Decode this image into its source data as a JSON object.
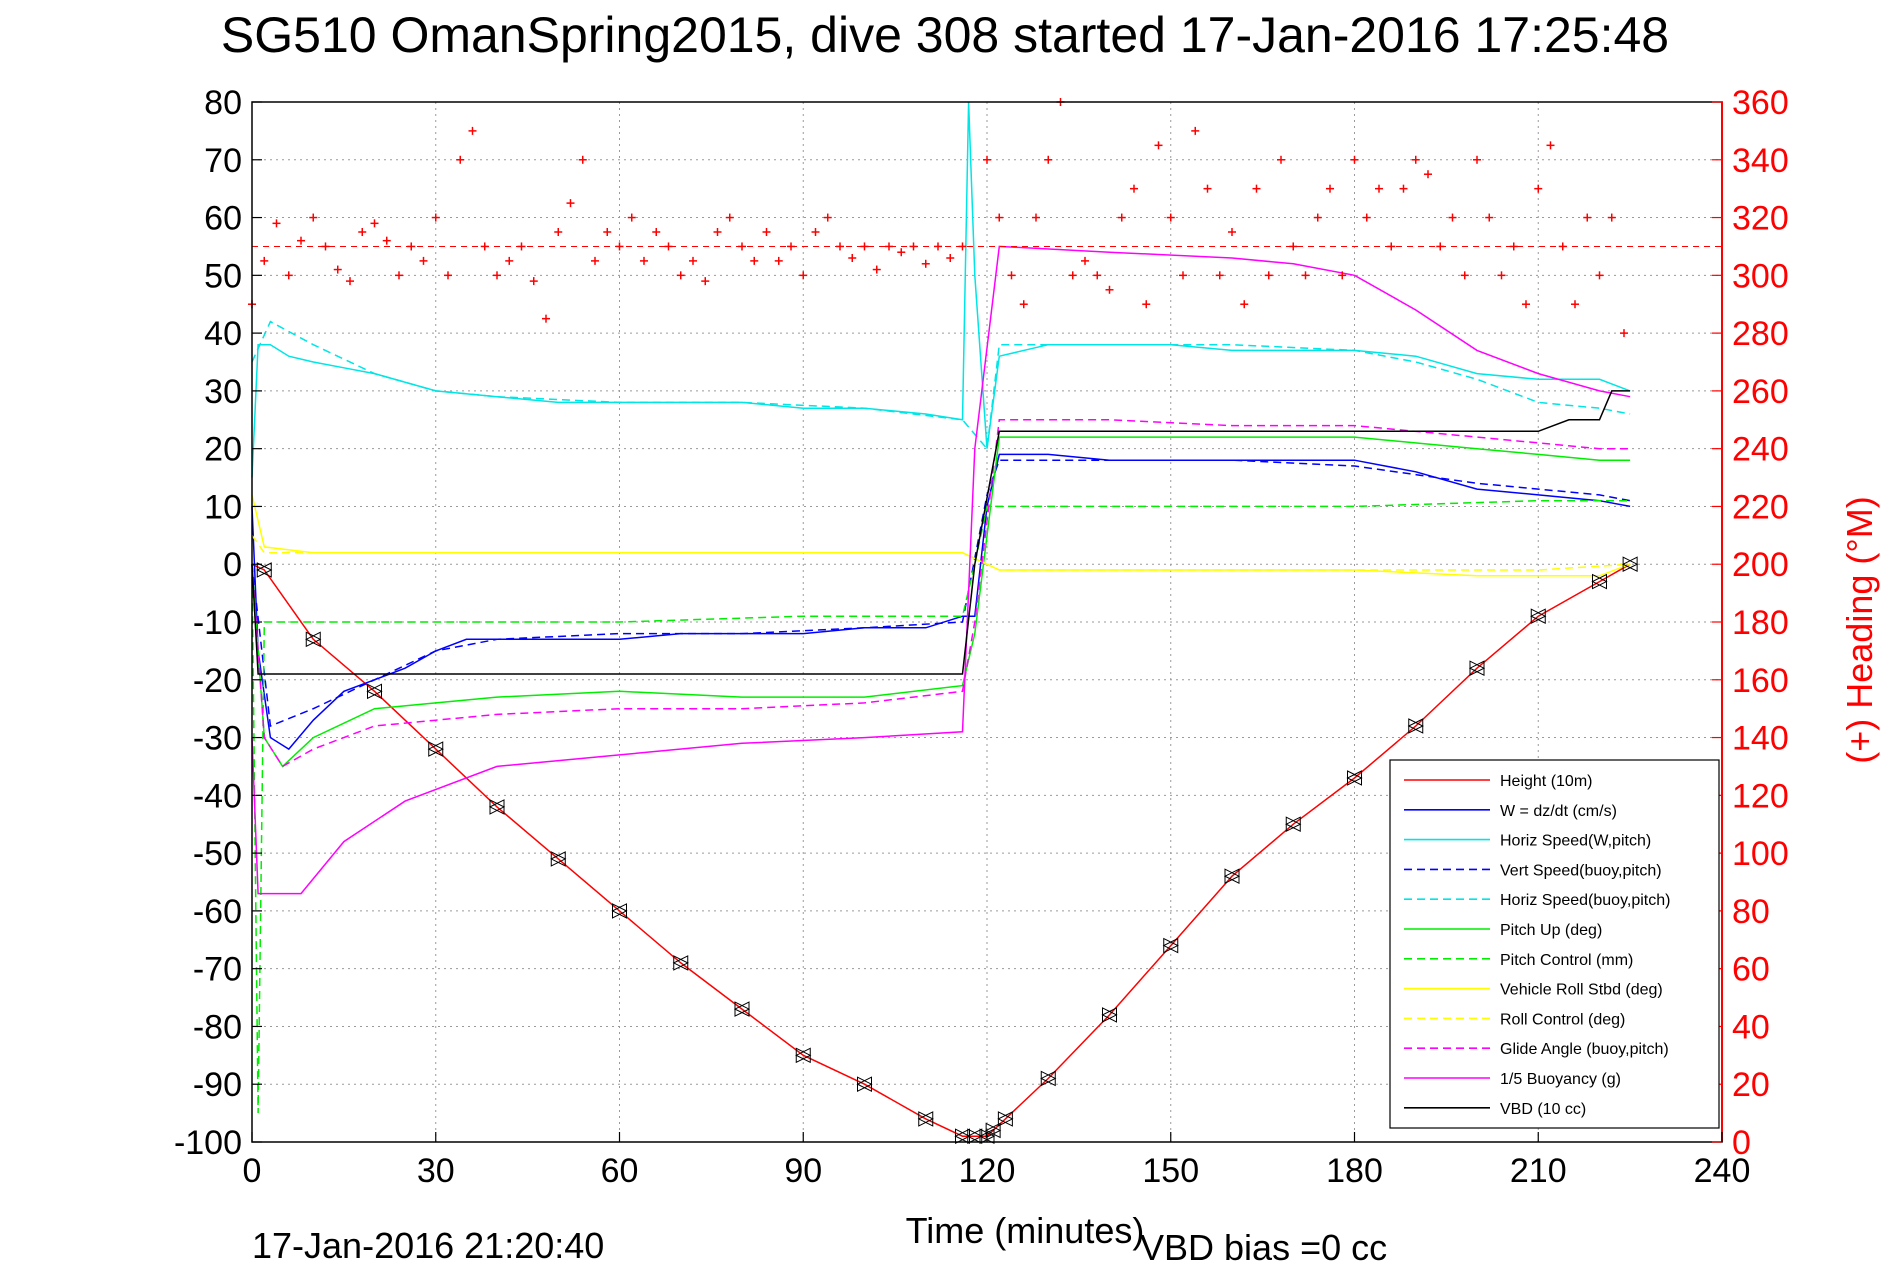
{
  "chart_data": {
    "type": "line",
    "title": "SG510 OmanSpring2015, dive 308 started 17-Jan-2016 17:25:48",
    "xlabel": "Time (minutes)",
    "ylabel_right": "(+) Heading (°M)",
    "footer_left": "17-Jan-2016 21:20:40",
    "footer_right": "VBD bias =0 cc",
    "xlim": [
      0,
      240
    ],
    "ylim": [
      -100,
      80
    ],
    "ylim_right": [
      0,
      360
    ],
    "x_ticks": [
      "0",
      "30",
      "60",
      "90",
      "120",
      "150",
      "180",
      "210",
      "240"
    ],
    "y_ticks": [
      "80",
      "70",
      "60",
      "50",
      "40",
      "30",
      "20",
      "10",
      "0",
      "-10",
      "-20",
      "-30",
      "-40",
      "-50",
      "-60",
      "-70",
      "-80",
      "-90",
      "-100"
    ],
    "y_ticks_right": [
      "360",
      "340",
      "320",
      "300",
      "280",
      "260",
      "240",
      "220",
      "200",
      "180",
      "160",
      "140",
      "120",
      "100",
      "80",
      "60",
      "40",
      "20",
      "0"
    ],
    "grid": true,
    "legend_position": "bottom-right",
    "colors": {
      "height": "#ff0000",
      "w": "#0000ff",
      "horiz_speed": "#00e5e5",
      "pitch": "#00ee00",
      "roll": "#ffff00",
      "glide": "#ff00ff",
      "vbd": "#000000",
      "heading": "#ff0000",
      "right_axis": "#ff0000"
    },
    "series": [
      {
        "name": "Height (10m)",
        "color": "#ff0000",
        "style": "solid",
        "x": [
          0,
          2,
          10,
          20,
          30,
          40,
          50,
          60,
          70,
          80,
          90,
          100,
          110,
          116,
          118,
          120,
          121,
          123,
          130,
          140,
          150,
          160,
          170,
          180,
          190,
          200,
          210,
          220,
          225
        ],
        "y": [
          0,
          -1,
          -13,
          -22,
          -32,
          -42,
          -51,
          -60,
          -69,
          -77,
          -85,
          -90,
          -96,
          -99,
          -99,
          -99,
          -98,
          -96,
          -89,
          -78,
          -66,
          -54,
          -45,
          -37,
          -28,
          -18,
          -9,
          -3,
          0
        ]
      },
      {
        "name": "W = dz/dt (cm/s)",
        "color": "#0000ff",
        "style": "solid",
        "x": [
          0,
          1,
          3,
          6,
          10,
          15,
          20,
          25,
          30,
          35,
          40,
          50,
          60,
          70,
          80,
          90,
          100,
          110,
          116,
          118,
          120,
          122,
          130,
          140,
          150,
          160,
          170,
          180,
          190,
          200,
          210,
          220,
          225
        ],
        "y": [
          10,
          -15,
          -30,
          -32,
          -27,
          -22,
          -20,
          -18,
          -15,
          -13,
          -13,
          -13,
          -13,
          -12,
          -12,
          -12,
          -11,
          -11,
          -9,
          -9,
          10,
          19,
          19,
          18,
          18,
          18,
          18,
          18,
          16,
          13,
          12,
          11,
          10
        ]
      },
      {
        "name": "Horiz Speed(W,pitch)",
        "color": "#00e5e5",
        "style": "solid",
        "x": [
          0,
          1,
          3,
          6,
          10,
          15,
          20,
          30,
          40,
          50,
          60,
          70,
          80,
          90,
          100,
          110,
          116,
          117,
          118,
          120,
          122,
          130,
          140,
          150,
          160,
          170,
          180,
          190,
          200,
          210,
          220,
          225
        ],
        "y": [
          15,
          38,
          38,
          36,
          35,
          34,
          33,
          30,
          29,
          28,
          28,
          28,
          28,
          27,
          27,
          26,
          25,
          80,
          50,
          20,
          36,
          38,
          38,
          38,
          37,
          37,
          37,
          36,
          33,
          32,
          32,
          30
        ]
      },
      {
        "name": "Vert Speed(buoy,pitch)",
        "color": "#0000ff",
        "style": "dashed",
        "x": [
          0,
          3,
          10,
          20,
          30,
          40,
          60,
          80,
          100,
          116,
          120,
          122,
          140,
          160,
          180,
          200,
          220,
          225
        ],
        "y": [
          0,
          -28,
          -25,
          -20,
          -15,
          -13,
          -12,
          -12,
          -11,
          -10,
          12,
          18,
          18,
          18,
          17,
          14,
          12,
          11
        ]
      },
      {
        "name": "Horiz Speed(buoy,pitch)",
        "color": "#00e5e5",
        "style": "dashed",
        "x": [
          0,
          3,
          10,
          20,
          30,
          40,
          60,
          80,
          100,
          116,
          120,
          122,
          140,
          160,
          180,
          190,
          200,
          210,
          220,
          225
        ],
        "y": [
          35,
          42,
          38,
          33,
          30,
          29,
          28,
          28,
          27,
          25,
          20,
          38,
          38,
          38,
          37,
          35,
          32,
          28,
          27,
          26
        ]
      },
      {
        "name": "Pitch Up (deg)",
        "color": "#00ee00",
        "style": "solid",
        "x": [
          0,
          2,
          5,
          10,
          20,
          30,
          40,
          60,
          80,
          100,
          116,
          118,
          122,
          140,
          160,
          180,
          200,
          210,
          220,
          225
        ],
        "y": [
          0,
          -30,
          -35,
          -30,
          -25,
          -24,
          -23,
          -22,
          -23,
          -23,
          -21,
          -12,
          22,
          22,
          22,
          22,
          20,
          19,
          18,
          18
        ]
      },
      {
        "name": "Pitch Control (mm)",
        "color": "#00ee00",
        "style": "dashed",
        "x": [
          0,
          1,
          2,
          5,
          10,
          30,
          60,
          90,
          116,
          118,
          120,
          122,
          150,
          180,
          210,
          225
        ],
        "y": [
          0,
          -95,
          -10,
          -10,
          -10,
          -10,
          -10,
          -9,
          -9,
          0,
          10,
          10,
          10,
          10,
          11,
          11
        ]
      },
      {
        "name": "Vehicle Roll Stbd (deg)",
        "color": "#ffff00",
        "style": "solid",
        "x": [
          0,
          2,
          10,
          20,
          30,
          40,
          60,
          80,
          100,
          116,
          120,
          122,
          140,
          160,
          180,
          200,
          220,
          225
        ],
        "y": [
          12,
          3,
          2,
          2,
          2,
          2,
          2,
          2,
          2,
          2,
          0,
          -1,
          -1,
          -1,
          -1,
          -2,
          -2,
          0
        ]
      },
      {
        "name": "Roll Control (deg)",
        "color": "#ffff00",
        "style": "dashed",
        "x": [
          0,
          2,
          10,
          30,
          60,
          90,
          116,
          120,
          122,
          150,
          180,
          210,
          225
        ],
        "y": [
          5,
          2,
          2,
          2,
          2,
          2,
          2,
          0,
          -1,
          -1,
          -1,
          -1,
          0
        ]
      },
      {
        "name": "Glide Angle (buoy,pitch)",
        "color": "#ff00ff",
        "style": "dashed",
        "x": [
          0,
          2,
          5,
          10,
          20,
          30,
          40,
          60,
          80,
          100,
          116,
          118,
          122,
          140,
          160,
          180,
          200,
          220,
          225
        ],
        "y": [
          0,
          -30,
          -35,
          -32,
          -28,
          -27,
          -26,
          -25,
          -25,
          -24,
          -22,
          -10,
          25,
          25,
          24,
          24,
          22,
          20,
          20
        ]
      },
      {
        "name": "1/5 Buoyancy (g)",
        "color": "#ff00ff",
        "style": "solid",
        "x": [
          0,
          1,
          2,
          8,
          15,
          25,
          40,
          60,
          80,
          100,
          116,
          118,
          122,
          140,
          160,
          170,
          180,
          190,
          200,
          210,
          220,
          225
        ],
        "y": [
          -30,
          -57,
          -57,
          -57,
          -48,
          -41,
          -35,
          -33,
          -31,
          -30,
          -29,
          20,
          55,
          54,
          53,
          52,
          50,
          44,
          37,
          33,
          30,
          29
        ]
      },
      {
        "name": "VBD (10 cc)",
        "color": "#000000",
        "style": "solid",
        "x": [
          0,
          1,
          2,
          30,
          60,
          90,
          116,
          118,
          122,
          140,
          160,
          180,
          190,
          200,
          210,
          215,
          220,
          222,
          225
        ],
        "y": [
          0,
          -19,
          -19,
          -19,
          -19,
          -19,
          -19,
          0,
          23,
          23,
          23,
          23,
          23,
          23,
          23,
          25,
          25,
          30,
          30
        ]
      }
    ],
    "heading_series": {
      "name": "(+) Heading (°M)",
      "reference": 310,
      "x": [
        0,
        2,
        4,
        6,
        8,
        10,
        12,
        14,
        16,
        18,
        20,
        22,
        24,
        26,
        28,
        30,
        32,
        34,
        36,
        38,
        40,
        42,
        44,
        46,
        48,
        50,
        52,
        54,
        56,
        58,
        60,
        62,
        64,
        66,
        68,
        70,
        72,
        74,
        76,
        78,
        80,
        82,
        84,
        86,
        88,
        90,
        92,
        94,
        96,
        98,
        100,
        102,
        104,
        106,
        108,
        110,
        112,
        114,
        116,
        120,
        122,
        124,
        126,
        128,
        130,
        132,
        134,
        136,
        138,
        140,
        142,
        144,
        146,
        148,
        150,
        152,
        154,
        156,
        158,
        160,
        162,
        164,
        166,
        168,
        170,
        172,
        174,
        176,
        178,
        180,
        182,
        184,
        186,
        188,
        190,
        192,
        194,
        196,
        198,
        200,
        202,
        204,
        206,
        208,
        210,
        212,
        214,
        216,
        218,
        220,
        222,
        224
      ],
      "y": [
        290,
        305,
        318,
        300,
        312,
        320,
        310,
        302,
        298,
        315,
        318,
        312,
        300,
        310,
        305,
        320,
        300,
        340,
        350,
        310,
        300,
        305,
        310,
        298,
        285,
        315,
        325,
        340,
        305,
        315,
        310,
        320,
        305,
        315,
        310,
        300,
        305,
        298,
        315,
        320,
        310,
        305,
        315,
        305,
        310,
        300,
        315,
        320,
        310,
        306,
        310,
        302,
        310,
        308,
        310,
        304,
        310,
        306,
        310,
        340,
        320,
        300,
        290,
        320,
        340,
        360,
        300,
        305,
        300,
        295,
        320,
        330,
        290,
        345,
        320,
        300,
        350,
        330,
        300,
        315,
        290,
        330,
        300,
        340,
        310,
        300,
        320,
        330,
        300,
        340,
        320,
        330,
        310,
        330,
        340,
        335,
        310,
        320,
        300,
        340,
        320,
        300,
        310,
        290,
        330,
        345,
        310,
        290,
        320,
        300,
        320,
        280
      ]
    }
  },
  "legend": {
    "entries": [
      {
        "label": "Height (10m)",
        "color": "#ff0000",
        "style": "solid"
      },
      {
        "label": "W = dz/dt (cm/s)",
        "color": "#0000ff",
        "style": "solid"
      },
      {
        "label": "Horiz Speed(W,pitch)",
        "color": "#00e5e5",
        "style": "solid"
      },
      {
        "label": "Vert Speed(buoy,pitch)",
        "color": "#0000ff",
        "style": "dashed"
      },
      {
        "label": "Horiz Speed(buoy,pitch)",
        "color": "#00e5e5",
        "style": "dashed"
      },
      {
        "label": "Pitch Up (deg)",
        "color": "#00ee00",
        "style": "solid"
      },
      {
        "label": "Pitch Control (mm)",
        "color": "#00ee00",
        "style": "dashed"
      },
      {
        "label": "Vehicle Roll Stbd (deg)",
        "color": "#ffff00",
        "style": "solid"
      },
      {
        "label": "Roll Control (deg)",
        "color": "#ffff00",
        "style": "dashed"
      },
      {
        "label": "Glide Angle (buoy,pitch)",
        "color": "#ff00ff",
        "style": "dashed"
      },
      {
        "label": "1/5 Buoyancy (g)",
        "color": "#ff00ff",
        "style": "solid"
      },
      {
        "label": "VBD (10 cc)",
        "color": "#000000",
        "style": "solid"
      }
    ]
  }
}
